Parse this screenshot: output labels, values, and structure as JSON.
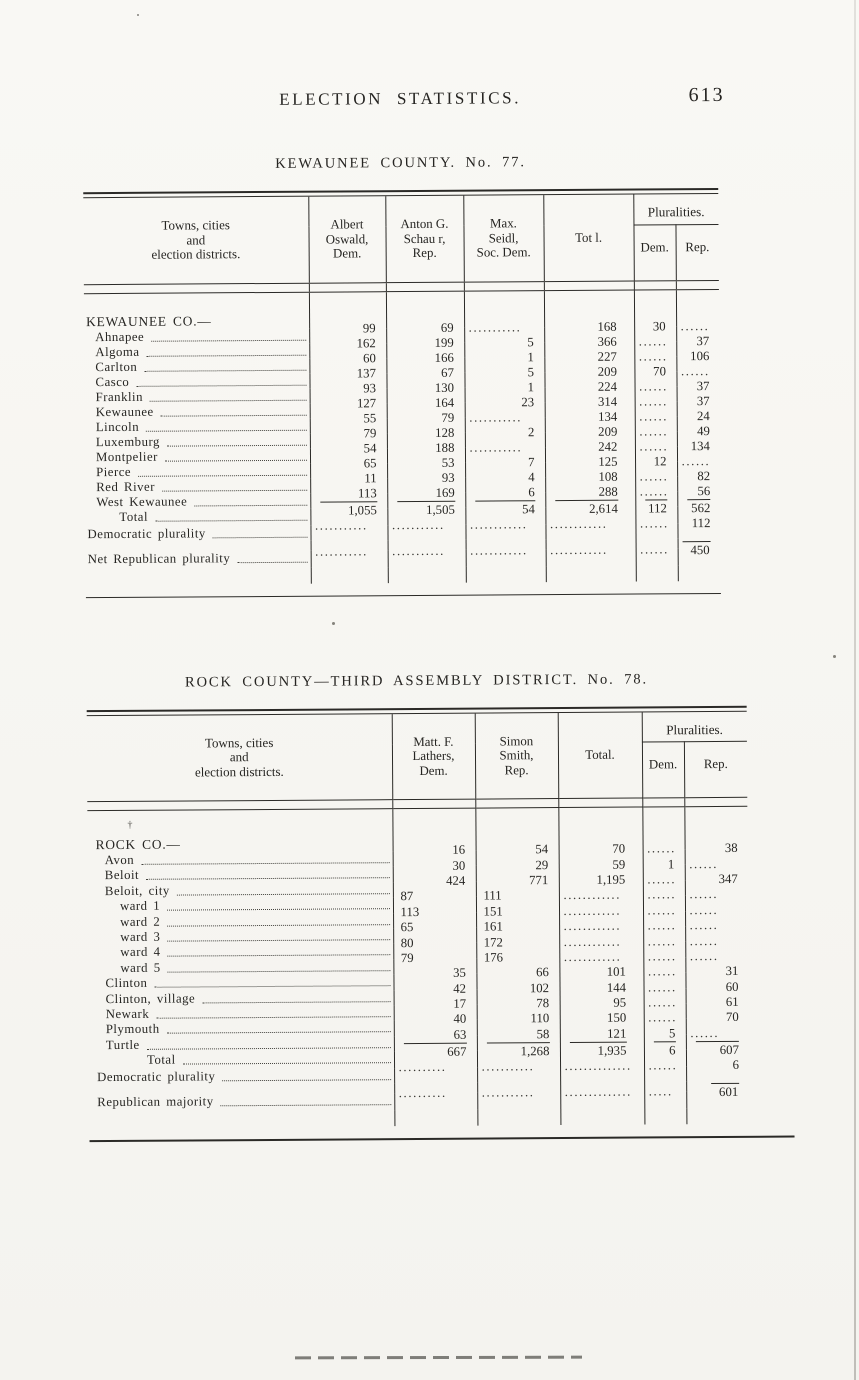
{
  "page": {
    "header_title": "ELECTION STATISTICS.",
    "page_number": "613"
  },
  "tables": [
    {
      "title": "KEWAUNEE COUNTY. No. 77.",
      "towns_header": "Towns, cities\nand\nelection districts.",
      "col_headers": [
        "Albert\nOswald,\nDem.",
        "Anton G.\nSchau r,\nRep.",
        "Max.\nSeidl,\nSoc. Dem.",
        "Tot l."
      ],
      "pluralities_label": "Pluralities.",
      "plur_sub": [
        "Dem.",
        "Rep."
      ],
      "value_keys": [
        "dem",
        "rep",
        "soc",
        "total",
        "dplur",
        "rplur"
      ],
      "rows": [
        {
          "label": "KEWAUNEE CO.—",
          "ind": 0,
          "group": true
        },
        {
          "label": "Ahnapee",
          "ind": 1,
          "leader": true,
          "dem": "99",
          "rep": "69",
          "soc": "...........",
          "total": "168",
          "dplur": "30",
          "rplur": "......"
        },
        {
          "label": "Algoma",
          "ind": 1,
          "leader": true,
          "dem": "162",
          "rep": "199",
          "soc": "5",
          "total": "366",
          "dplur": "......",
          "rplur": "37"
        },
        {
          "label": "Carlton",
          "ind": 1,
          "leader": true,
          "dem": "60",
          "rep": "166",
          "soc": "1",
          "total": "227",
          "dplur": "......",
          "rplur": "106"
        },
        {
          "label": "Casco",
          "ind": 1,
          "leader": true,
          "dem": "137",
          "rep": "67",
          "soc": "5",
          "total": "209",
          "dplur": "70",
          "rplur": "......"
        },
        {
          "label": "Franklin",
          "ind": 1,
          "leader": true,
          "dem": "93",
          "rep": "130",
          "soc": "1",
          "total": "224",
          "dplur": "......",
          "rplur": "37"
        },
        {
          "label": "Kewaunee",
          "ind": 1,
          "leader": true,
          "dem": "127",
          "rep": "164",
          "soc": "23",
          "total": "314",
          "dplur": "......",
          "rplur": "37"
        },
        {
          "label": "Lincoln",
          "ind": 1,
          "leader": true,
          "dem": "55",
          "rep": "79",
          "soc": "...........",
          "total": "134",
          "dplur": "......",
          "rplur": "24"
        },
        {
          "label": "Luxemburg",
          "ind": 1,
          "leader": true,
          "dem": "79",
          "rep": "128",
          "soc": "2",
          "total": "209",
          "dplur": "......",
          "rplur": "49"
        },
        {
          "label": "Montpelier",
          "ind": 1,
          "leader": true,
          "dem": "54",
          "rep": "188",
          "soc": "...........",
          "total": "242",
          "dplur": "......",
          "rplur": "134"
        },
        {
          "label": "Pierce",
          "ind": 1,
          "leader": true,
          "dem": "65",
          "rep": "53",
          "soc": "7",
          "total": "125",
          "dplur": "12",
          "rplur": "......"
        },
        {
          "label": "Red River",
          "ind": 1,
          "leader": true,
          "dem": "11",
          "rep": "93",
          "soc": "4",
          "total": "108",
          "dplur": "......",
          "rplur": "82"
        },
        {
          "label": "West Kewaunee",
          "ind": 1,
          "leader": true,
          "dem": "113",
          "rep": "169",
          "soc": "6",
          "total": "288",
          "dplur": "......",
          "rplur": "56"
        },
        {
          "label": "Total",
          "ind": 2,
          "leader": true,
          "sum": true,
          "dem": "1,055",
          "rep": "1,505",
          "soc": "54",
          "total": "2,614",
          "dplur": "112",
          "rplur": "562"
        },
        {
          "label": "Democratic plurality",
          "ind": 0,
          "leader": true,
          "dem": "...........",
          "rep": "...........",
          "soc": "............",
          "total": "............",
          "dplur": "......",
          "rplur": "112"
        },
        {
          "label": "Net Republican plurality",
          "ind": 0,
          "leader": true,
          "gap": true,
          "rule_over": "rplur",
          "dem": "...........",
          "rep": "...........",
          "soc": "............",
          "total": "............",
          "dplur": "......",
          "rplur": "450"
        }
      ]
    },
    {
      "title": "ROCK COUNTY—THIRD ASSEMBLY DISTRICT. No. 78.",
      "towns_header": "Towns, cities\nand\nelection districts.",
      "col_headers": [
        "Matt. F.\nLathers,\nDem.",
        "Simon\nSmith,\nRep.",
        "Total."
      ],
      "pluralities_label": "Pluralities.",
      "plur_sub": [
        "Dem.",
        "Rep."
      ],
      "group_mark": "†",
      "value_keys": [
        "dem",
        "rep",
        "total",
        "dplur",
        "rplur"
      ],
      "rows": [
        {
          "label": "ROCK CO.—",
          "ind": 0,
          "group": true
        },
        {
          "label": "Avon",
          "ind": 1,
          "leader": true,
          "dem": "16",
          "rep": "54",
          "total": "70",
          "dplur": "......",
          "rplur": "38"
        },
        {
          "label": "Beloit",
          "ind": 1,
          "leader": true,
          "dem": "30",
          "rep": "29",
          "total": "59",
          "dplur": "1",
          "rplur": "......"
        },
        {
          "label": "Beloit, city",
          "ind": 1,
          "leader": true,
          "dem": "424",
          "rep": "771",
          "total": "1,195",
          "dplur": "......",
          "rplur": "347"
        },
        {
          "label": "ward 1",
          "ind": 2,
          "leader": true,
          "left_vals": true,
          "dem": "87",
          "rep": "111",
          "total": "............",
          "dplur": "......",
          "rplur": "......"
        },
        {
          "label": "ward 2",
          "ind": 2,
          "leader": true,
          "left_vals": true,
          "dem": "113",
          "rep": "151",
          "total": "............",
          "dplur": "......",
          "rplur": "......"
        },
        {
          "label": "ward 3",
          "ind": 2,
          "leader": true,
          "left_vals": true,
          "dem": "65",
          "rep": "161",
          "total": "............",
          "dplur": "......",
          "rplur": "......"
        },
        {
          "label": "ward 4",
          "ind": 2,
          "leader": true,
          "left_vals": true,
          "dem": "80",
          "rep": "172",
          "total": "............",
          "dplur": "......",
          "rplur": "......"
        },
        {
          "label": "ward 5",
          "ind": 2,
          "leader": true,
          "left_vals": true,
          "dem": "79",
          "rep": "176",
          "total": "............",
          "dplur": "......",
          "rplur": "......"
        },
        {
          "label": "Clinton",
          "ind": 1,
          "leader": true,
          "dem": "35",
          "rep": "66",
          "total": "101",
          "dplur": "......",
          "rplur": "31"
        },
        {
          "label": "Clinton, village",
          "ind": 1,
          "leader": true,
          "dem": "42",
          "rep": "102",
          "total": "144",
          "dplur": "......",
          "rplur": "60"
        },
        {
          "label": "Newark",
          "ind": 1,
          "leader": true,
          "dem": "17",
          "rep": "78",
          "total": "95",
          "dplur": "......",
          "rplur": "61"
        },
        {
          "label": "Plymouth",
          "ind": 1,
          "leader": true,
          "dem": "40",
          "rep": "110",
          "total": "150",
          "dplur": "......",
          "rplur": "70"
        },
        {
          "label": "Turtle",
          "ind": 1,
          "leader": true,
          "dem": "63",
          "rep": "58",
          "total": "121",
          "dplur": "5",
          "rplur": "......"
        },
        {
          "label": "Total",
          "ind": 3,
          "leader": true,
          "sum": true,
          "dem": "667",
          "rep": "1,268",
          "total": "1,935",
          "dplur": "6",
          "rplur": "607"
        },
        {
          "label": "Democratic plurality",
          "ind": 0,
          "leader": true,
          "dem": "..........",
          "rep": "...........",
          "total": "..............",
          "dplur": "......",
          "rplur": "6"
        },
        {
          "label": "Republican majority",
          "ind": 0,
          "leader": true,
          "gap": true,
          "rule_over": "rplur",
          "dem": "..........",
          "rep": "...........",
          "total": "..............",
          "dplur": ".....",
          "rplur": "601"
        }
      ]
    }
  ]
}
